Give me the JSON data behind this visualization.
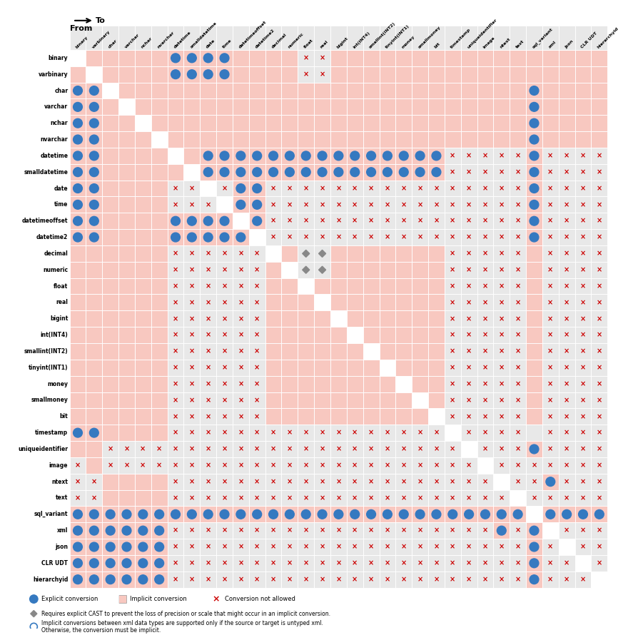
{
  "types": [
    "binary",
    "varbinary",
    "char",
    "varchar",
    "nchar",
    "nvarchar",
    "datetime",
    "smalldatetime",
    "date",
    "time",
    "datetimeoffset",
    "datetime2",
    "decimal",
    "numeric",
    "float",
    "real",
    "bigint",
    "int(INT4)",
    "smallint(INT2)",
    "tinyint(INT1)",
    "money",
    "smallmoney",
    "bit",
    "timestamp",
    "uniqueidentifier",
    "image",
    "ntext",
    "text",
    "sql_variant",
    "xml",
    "json",
    "CLR UDT",
    "hierarchyid"
  ],
  "implicit_color": "#f8c8c0",
  "explicit_color": "#3579c0",
  "no_color": "#e8e8e8",
  "self_color": "#ffffff",
  "diamond_color": "#888888",
  "x_color": "#cc0000",
  "legend_note1": "Requires explicit CAST to prevent the loss of precision or scale that might occur in an implicit conversion.",
  "legend_note2": "Implicit conversions between xml data types are supported only if the source or target is untyped xml.\nOtherwise, the conversion must be implicit.",
  "legend_explicit": "Explicit conversion",
  "legend_implicit": "Implicit conversion",
  "legend_no": "Conversion not allowed"
}
